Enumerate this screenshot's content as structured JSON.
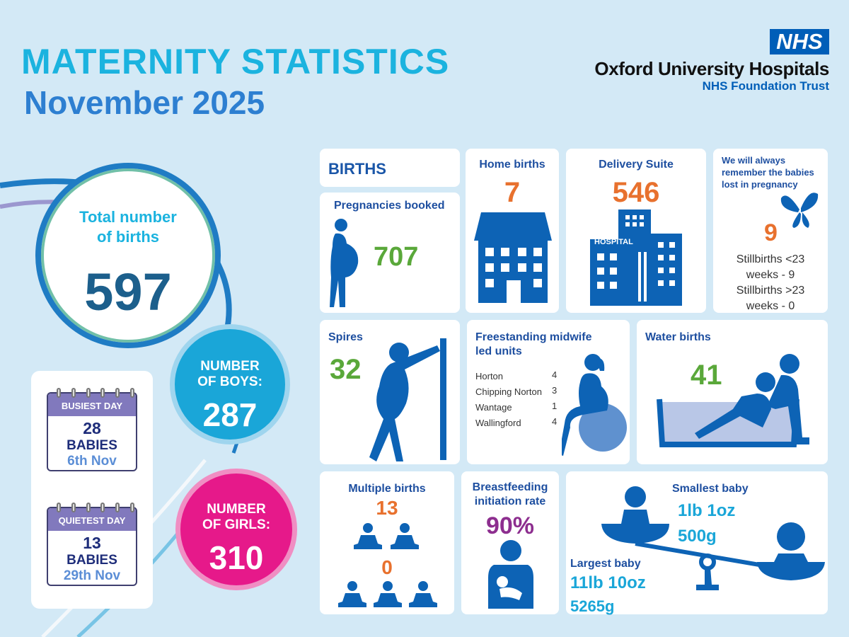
{
  "header": {
    "title": "MATERNITY STATISTICS",
    "period": "November 2025",
    "logo": "NHS",
    "org_name": "Oxford University Hospitals",
    "org_sub": "NHS Foundation Trust"
  },
  "totals": {
    "total_label_line1": "Total number",
    "total_label_line2": "of births",
    "total_value": "597",
    "boys_label_line1": "NUMBER",
    "boys_label_line2": "OF BOYS:",
    "boys_value": "287",
    "girls_label_line1": "NUMBER",
    "girls_label_line2": "OF GIRLS:",
    "girls_value": "310"
  },
  "calendar": {
    "busiest": {
      "label": "BUSIEST DAY",
      "count": "28",
      "unit": "BABIES",
      "date": "6th Nov"
    },
    "quietest": {
      "label": "QUIETEST DAY",
      "count": "13",
      "unit": "BABIES",
      "date": "29th Nov"
    }
  },
  "births": {
    "heading": "BIRTHS",
    "pregnancies_label": "Pregnancies booked",
    "pregnancies_value": "707",
    "home_label": "Home births",
    "home_value": "7",
    "delivery_label": "Delivery Suite",
    "delivery_value": "546",
    "hospital_sign": "HOSPITAL",
    "memorial_text": "We will always remember the babies lost in pregnancy",
    "stillbirths_value": "9",
    "stillbirths_lt_1": "Stillbirths <23",
    "stillbirths_lt_2": "weeks - 9",
    "stillbirths_gt_1": "Stillbirths >23",
    "stillbirths_gt_2": "weeks - 0"
  },
  "spires": {
    "label": "Spires",
    "value": "32"
  },
  "midwife_units": {
    "label_line1": "Freestanding midwife",
    "label_line2": "led units",
    "units": [
      {
        "name": "Horton",
        "value": "4"
      },
      {
        "name": "Chipping Norton",
        "value": "3"
      },
      {
        "name": "Wantage",
        "value": "1"
      },
      {
        "name": "Wallingford",
        "value": "4"
      }
    ]
  },
  "water_births": {
    "label": "Water births",
    "value": "41"
  },
  "multiple_births": {
    "label": "Multiple births",
    "twins": "13",
    "triplets": "0"
  },
  "breastfeeding": {
    "label_line1": "Breastfeeding",
    "label_line2": "initiation rate",
    "value": "90%"
  },
  "baby_weights": {
    "smallest_label": "Smallest baby",
    "smallest_imperial": "1lb 1oz",
    "smallest_metric": "500g",
    "largest_label": "Largest baby",
    "largest_imperial": "11lb 10oz",
    "largest_metric": "5265g"
  },
  "colors": {
    "background": "#d3e9f6",
    "accent_cyan": "#1bb3df",
    "accent_blue": "#2d7fd1",
    "nhs_blue": "#005eb8",
    "icon_blue": "#0d63b5",
    "orange": "#e8712e",
    "green": "#5aa83a",
    "purple": "#8d2e8f",
    "girls_pink": "#e6198a",
    "boys_cyan": "#1aa6d8"
  }
}
